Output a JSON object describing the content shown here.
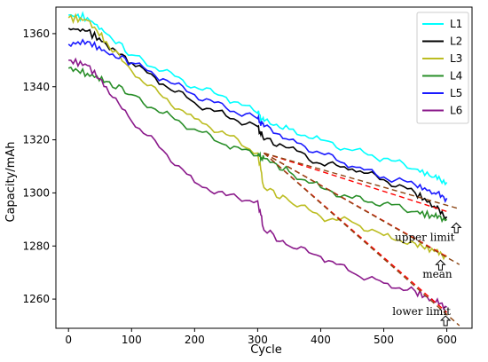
{
  "chart_data": {
    "type": "line",
    "title": "",
    "xlabel": "Cycle",
    "ylabel": "Capacity/mAh",
    "xlim": [
      -20,
      640
    ],
    "ylim": [
      1249,
      1370
    ],
    "xticks": [
      0,
      100,
      200,
      300,
      400,
      500,
      600
    ],
    "yticks": [
      1260,
      1280,
      1300,
      1320,
      1340,
      1360
    ],
    "grid": false,
    "legend_position": "top-right",
    "series": [
      {
        "name": "L1",
        "color": "#00ffff",
        "points": [
          [
            0,
            1367
          ],
          [
            30,
            1366
          ],
          [
            60,
            1360
          ],
          [
            100,
            1352
          ],
          [
            150,
            1346
          ],
          [
            200,
            1340
          ],
          [
            250,
            1336
          ],
          [
            300,
            1330
          ],
          [
            310,
            1327
          ],
          [
            350,
            1324
          ],
          [
            400,
            1320
          ],
          [
            450,
            1316
          ],
          [
            500,
            1313
          ],
          [
            550,
            1309
          ],
          [
            580,
            1306
          ],
          [
            600,
            1304
          ]
        ]
      },
      {
        "name": "L2",
        "color": "#000000",
        "points": [
          [
            0,
            1362
          ],
          [
            30,
            1361
          ],
          [
            60,
            1356
          ],
          [
            100,
            1349
          ],
          [
            150,
            1341
          ],
          [
            200,
            1334
          ],
          [
            250,
            1329
          ],
          [
            300,
            1325
          ],
          [
            310,
            1320
          ],
          [
            350,
            1317
          ],
          [
            400,
            1311
          ],
          [
            450,
            1309
          ],
          [
            500,
            1305
          ],
          [
            550,
            1300
          ],
          [
            580,
            1295
          ],
          [
            600,
            1291
          ]
        ]
      },
      {
        "name": "L3",
        "color": "#bcbd22",
        "points": [
          [
            0,
            1366
          ],
          [
            30,
            1365
          ],
          [
            60,
            1357
          ],
          [
            100,
            1346
          ],
          [
            150,
            1336
          ],
          [
            200,
            1328
          ],
          [
            250,
            1322
          ],
          [
            300,
            1315
          ],
          [
            310,
            1302
          ],
          [
            350,
            1297
          ],
          [
            400,
            1291
          ],
          [
            450,
            1289
          ],
          [
            500,
            1284
          ],
          [
            550,
            1281
          ],
          [
            580,
            1278
          ],
          [
            600,
            1276
          ]
        ]
      },
      {
        "name": "L4",
        "color": "#2a8f2a",
        "points": [
          [
            0,
            1347
          ],
          [
            30,
            1345
          ],
          [
            60,
            1342
          ],
          [
            100,
            1337
          ],
          [
            150,
            1330
          ],
          [
            200,
            1324
          ],
          [
            250,
            1318
          ],
          [
            300,
            1314
          ],
          [
            310,
            1313
          ],
          [
            350,
            1308
          ],
          [
            400,
            1302
          ],
          [
            450,
            1298
          ],
          [
            500,
            1296
          ],
          [
            550,
            1293
          ],
          [
            580,
            1291
          ],
          [
            600,
            1290
          ]
        ]
      },
      {
        "name": "L5",
        "color": "#1a1aff",
        "points": [
          [
            0,
            1356
          ],
          [
            30,
            1357
          ],
          [
            60,
            1353
          ],
          [
            100,
            1349
          ],
          [
            150,
            1343
          ],
          [
            200,
            1337
          ],
          [
            250,
            1332
          ],
          [
            300,
            1328
          ],
          [
            310,
            1325
          ],
          [
            350,
            1320
          ],
          [
            400,
            1315
          ],
          [
            450,
            1310
          ],
          [
            500,
            1306
          ],
          [
            550,
            1303
          ],
          [
            580,
            1300
          ],
          [
            600,
            1298
          ]
        ]
      },
      {
        "name": "L6",
        "color": "#8b1a8b",
        "points": [
          [
            0,
            1350
          ],
          [
            30,
            1348
          ],
          [
            60,
            1340
          ],
          [
            100,
            1327
          ],
          [
            150,
            1316
          ],
          [
            200,
            1304
          ],
          [
            250,
            1299
          ],
          [
            300,
            1297
          ],
          [
            310,
            1286
          ],
          [
            350,
            1280
          ],
          [
            400,
            1276
          ],
          [
            450,
            1270
          ],
          [
            500,
            1266
          ],
          [
            550,
            1263
          ],
          [
            580,
            1259
          ],
          [
            600,
            1257
          ]
        ]
      }
    ],
    "fit_lines": [
      {
        "color": "#ff0000",
        "style": "dashed",
        "points": [
          [
            310,
            1315
          ],
          [
            600,
            1293
          ]
        ]
      },
      {
        "color": "#8b4513",
        "style": "dashed",
        "points": [
          [
            310,
            1315
          ],
          [
            620,
            1294
          ]
        ]
      },
      {
        "color": "#ff0000",
        "style": "dashed",
        "points": [
          [
            310,
            1315
          ],
          [
            600,
            1276
          ]
        ]
      },
      {
        "color": "#8b4513",
        "style": "dashed",
        "points": [
          [
            310,
            1315
          ],
          [
            620,
            1273
          ]
        ]
      },
      {
        "color": "#ff0000",
        "style": "dashed",
        "points": [
          [
            310,
            1315
          ],
          [
            600,
            1255
          ]
        ]
      },
      {
        "color": "#8b4513",
        "style": "dashed",
        "points": [
          [
            310,
            1315
          ],
          [
            620,
            1250
          ]
        ]
      }
    ],
    "annotations": [
      {
        "text": "upper limit",
        "x": 565,
        "y": 1282,
        "arrow_x": 615,
        "arrow_y": 1290
      },
      {
        "text": "mean",
        "x": 585,
        "y": 1268,
        "arrow_x": 590,
        "arrow_y": 1276
      },
      {
        "text": "lower limit",
        "x": 560,
        "y": 1254,
        "arrow_x": 598,
        "arrow_y": 1255
      }
    ]
  }
}
